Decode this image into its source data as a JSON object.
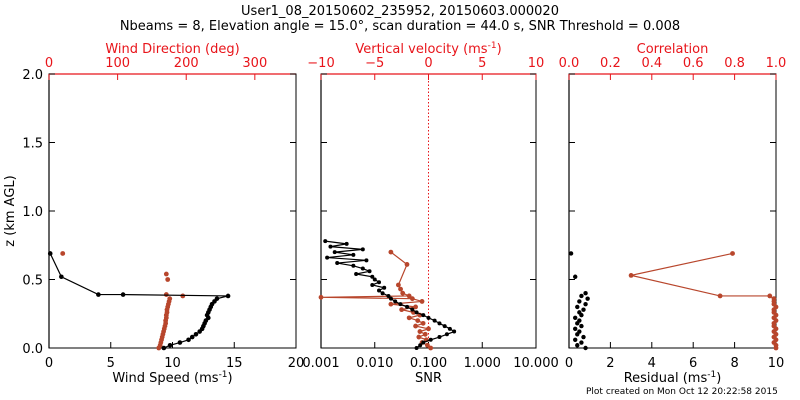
{
  "header": {
    "line1": "User1_08_20150602_235952, 20150603.000020",
    "line2": "Nbeams = 8, Elevation angle = 15.0°, scan duration = 44.0 s, SNR Threshold = 0.008"
  },
  "footer": "Plot created on Mon Oct 12 20:22:58 2015",
  "colors": {
    "axis": "#000000",
    "accent": "#e8141a",
    "profile": "#b8462c",
    "points": "#000000"
  },
  "chart_data": [
    {
      "type": "scatter",
      "name": "wind",
      "ylabel": "z (km AGL)",
      "ylim": [
        0,
        2
      ],
      "yticks": [
        "0.0",
        "0.5",
        "1.0",
        "1.5",
        "2.0"
      ],
      "bottom_axis": {
        "label": "Wind Speed (ms",
        "label_sup": "-1",
        "label_end": ")",
        "lim": [
          0,
          20
        ],
        "ticks": [
          "0",
          "5",
          "10",
          "15",
          "20"
        ]
      },
      "top_axis": {
        "label": "Wind Direction (deg)",
        "lim": [
          0,
          360
        ],
        "ticks": [
          "0",
          "100",
          "200",
          "300"
        ],
        "tick_values": [
          0,
          100,
          200,
          300
        ]
      },
      "speed": {
        "z": [
          0.69,
          0.52,
          0.39,
          0.39,
          0.38,
          0.36,
          0.34,
          0.32,
          0.3,
          0.28,
          0.26,
          0.24,
          0.22,
          0.2,
          0.18,
          0.16,
          0.14,
          0.12,
          0.1,
          0.08,
          0.06,
          0.04,
          0.02,
          0.0
        ],
        "x": [
          0.1,
          1.0,
          4.0,
          6.0,
          14.5,
          13.6,
          13.4,
          13.2,
          13.1,
          13.0,
          12.9,
          12.8,
          12.9,
          12.7,
          12.6,
          12.5,
          12.4,
          12.2,
          11.9,
          11.6,
          11.3,
          10.6,
          9.8,
          9.3
        ]
      },
      "direction": {
        "z": [
          0.69,
          0.54,
          0.5,
          0.39,
          0.38,
          0.36,
          0.34,
          0.32,
          0.3,
          0.28,
          0.26,
          0.24,
          0.22,
          0.2,
          0.18,
          0.16,
          0.14,
          0.12,
          0.1,
          0.08,
          0.06,
          0.04,
          0.02,
          0.0
        ],
        "x": [
          20,
          171,
          173,
          171,
          195,
          176,
          175,
          174,
          173,
          172,
          172,
          171,
          171,
          170,
          170,
          169,
          168,
          167,
          166,
          165,
          164,
          163,
          162,
          160
        ]
      }
    },
    {
      "type": "line",
      "name": "snr-vertical-velocity",
      "bottom_axis": {
        "label": "SNR",
        "scale": "log",
        "lim": [
          0.001,
          10
        ],
        "ticks": [
          "0.001",
          "0.010",
          "0.100",
          "1.000",
          "10.000"
        ],
        "tick_values": [
          0.001,
          0.01,
          0.1,
          1,
          10
        ]
      },
      "top_axis": {
        "label": "Vertical velocity (ms",
        "label_sup": "-1",
        "label_end": ")",
        "lim": [
          -10,
          10
        ],
        "ticks": [
          "−10",
          "−5",
          "0",
          "5",
          "10"
        ],
        "tick_values": [
          -10,
          -5,
          0,
          5,
          10
        ]
      },
      "snr": {
        "z": [
          0.78,
          0.76,
          0.74,
          0.72,
          0.7,
          0.68,
          0.66,
          0.64,
          0.62,
          0.6,
          0.58,
          0.56,
          0.54,
          0.52,
          0.5,
          0.48,
          0.46,
          0.44,
          0.42,
          0.4,
          0.38,
          0.36,
          0.34,
          0.32,
          0.3,
          0.28,
          0.26,
          0.24,
          0.22,
          0.2,
          0.18,
          0.16,
          0.14,
          0.12,
          0.1,
          0.08,
          0.06,
          0.04,
          0.02,
          0.0
        ],
        "x": [
          0.0012,
          0.003,
          0.0015,
          0.006,
          0.0018,
          0.004,
          0.0013,
          0.007,
          0.002,
          0.004,
          0.006,
          0.008,
          0.0045,
          0.009,
          0.01,
          0.012,
          0.009,
          0.015,
          0.012,
          0.014,
          0.018,
          0.02,
          0.024,
          0.03,
          0.04,
          0.05,
          0.06,
          0.08,
          0.1,
          0.13,
          0.16,
          0.2,
          0.25,
          0.3,
          0.22,
          0.16,
          0.11,
          0.08,
          0.07,
          0.06
        ]
      },
      "vvel": {
        "z": [
          0.7,
          0.61,
          0.46,
          0.43,
          0.4,
          0.38,
          0.37,
          0.36,
          0.34,
          0.32,
          0.3,
          0.28,
          0.26,
          0.24,
          0.22,
          0.2,
          0.18,
          0.16,
          0.14,
          0.12,
          0.1,
          0.08,
          0.06,
          0.04,
          0.02,
          0.0
        ],
        "x": [
          -3.5,
          -2.0,
          -2.8,
          -2.6,
          -2.4,
          -1.8,
          -10.0,
          -1.5,
          -0.6,
          -3.5,
          -1.2,
          -2.5,
          -1.4,
          -0.8,
          -1.8,
          -1.0,
          -0.5,
          -1.2,
          0.0,
          -0.8,
          -0.3,
          -0.9,
          -0.2,
          -0.6,
          -0.1,
          0.2
        ]
      },
      "zero_line": 0
    },
    {
      "type": "scatter",
      "name": "residual-correlation",
      "bottom_axis": {
        "label": "Residual (ms",
        "label_sup": "-1",
        "label_end": ")",
        "lim": [
          0,
          10
        ],
        "ticks": [
          "0",
          "2",
          "4",
          "6",
          "8",
          "10"
        ]
      },
      "top_axis": {
        "label": "Correlation",
        "lim": [
          0,
          1
        ],
        "ticks": [
          "0.0",
          "0.2",
          "0.4",
          "0.6",
          "0.8",
          "1.0"
        ],
        "tick_values": [
          0,
          0.2,
          0.4,
          0.6,
          0.8,
          1.0
        ]
      },
      "residual": {
        "z": [
          0.69,
          0.52,
          0.4,
          0.38,
          0.36,
          0.34,
          0.32,
          0.3,
          0.28,
          0.26,
          0.24,
          0.22,
          0.2,
          0.18,
          0.16,
          0.14,
          0.12,
          0.1,
          0.08,
          0.06,
          0.04,
          0.02,
          0.0
        ],
        "x": [
          0.1,
          0.3,
          0.8,
          0.6,
          0.9,
          0.5,
          0.8,
          0.4,
          0.7,
          0.5,
          0.6,
          0.3,
          0.5,
          0.4,
          0.6,
          0.3,
          0.5,
          0.4,
          0.7,
          0.3,
          0.6,
          0.4,
          0.8
        ]
      },
      "correlation": {
        "z": [
          0.69,
          0.53,
          0.38,
          0.38,
          0.36,
          0.34,
          0.32,
          0.3,
          0.28,
          0.26,
          0.24,
          0.22,
          0.2,
          0.18,
          0.16,
          0.14,
          0.12,
          0.1,
          0.08,
          0.06,
          0.04,
          0.02,
          0.0
        ],
        "x": [
          0.79,
          0.3,
          0.73,
          0.97,
          0.99,
          0.99,
          0.99,
          1.0,
          0.99,
          0.99,
          1.0,
          0.99,
          1.0,
          0.99,
          0.99,
          1.0,
          0.99,
          1.0,
          0.99,
          1.0,
          0.99,
          1.0,
          1.0
        ]
      }
    }
  ]
}
